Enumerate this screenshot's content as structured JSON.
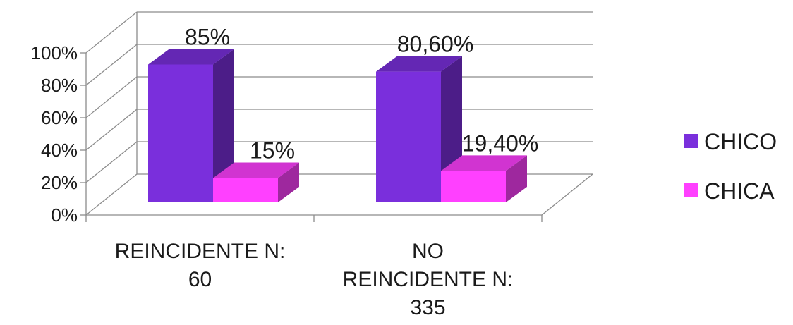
{
  "chart_data": {
    "type": "bar",
    "categories": [
      [
        "REINCIDENTE N:",
        "60"
      ],
      [
        "NO",
        "REINCIDENTE N:",
        "335"
      ]
    ],
    "series": [
      {
        "name": "CHICO",
        "values": [
          85,
          80.6
        ],
        "labels": [
          "85%",
          "80,60%"
        ],
        "color": "#7a2fdc"
      },
      {
        "name": "CHICA",
        "values": [
          15,
          19.4
        ],
        "labels": [
          "15%",
          "19,40%"
        ],
        "color": "#ff40ff"
      }
    ],
    "y_ticks": [
      "0%",
      "20%",
      "40%",
      "60%",
      "80%",
      "100%"
    ],
    "ylim": [
      0,
      100
    ],
    "legend_position": "right",
    "grid": true,
    "style": "3d-column"
  }
}
